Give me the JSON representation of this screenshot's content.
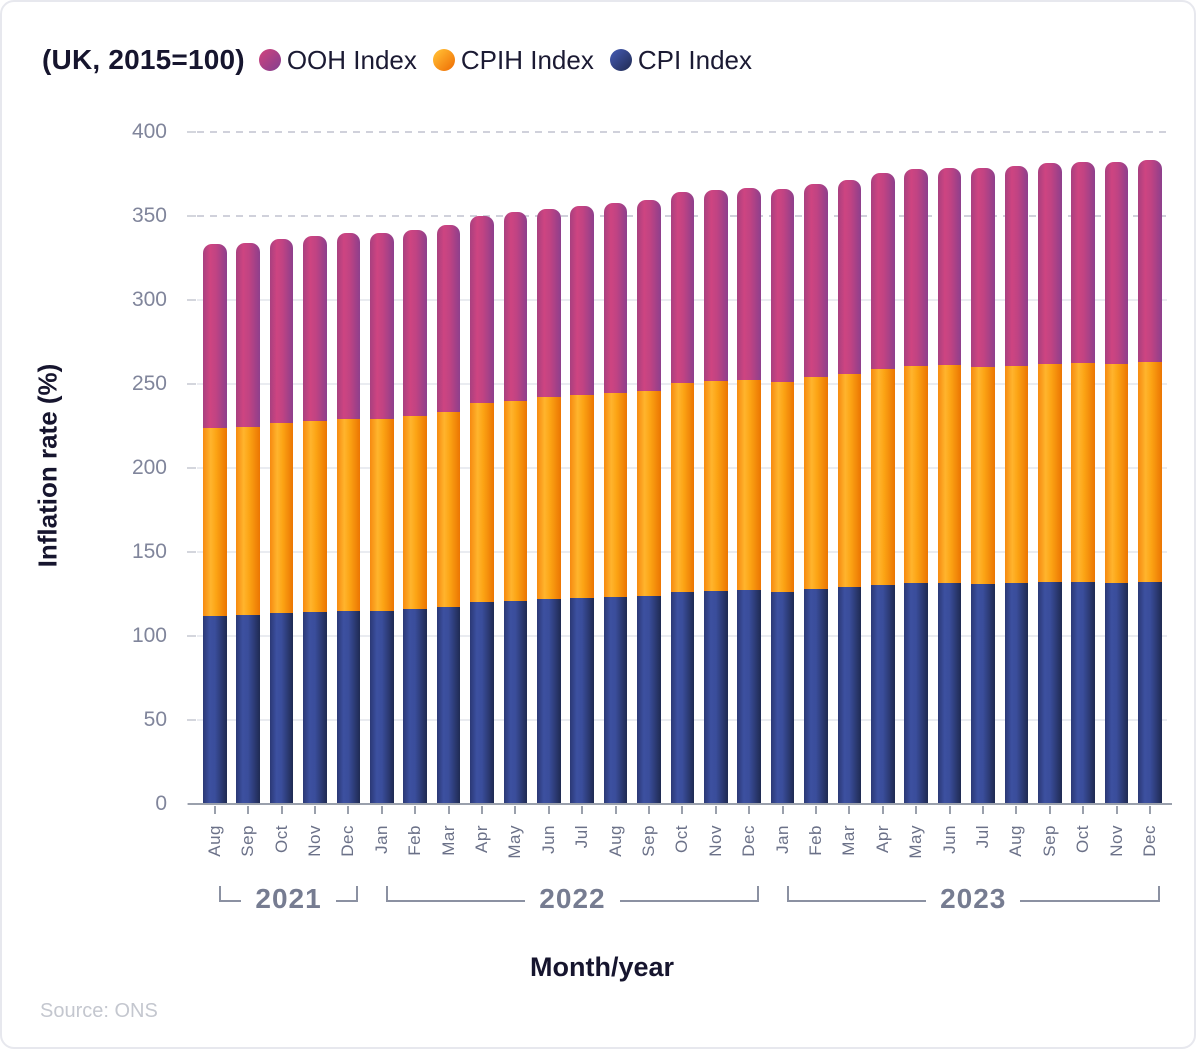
{
  "header": {
    "title": "(UK, 2015=100)",
    "legend": [
      {
        "id": "ooh",
        "label": "OOH Index",
        "color": "#b8417f"
      },
      {
        "id": "cpih",
        "label": "CPIH Index",
        "color": "#f99311"
      },
      {
        "id": "cpi",
        "label": "CPI Index",
        "color": "#2e3d80"
      }
    ]
  },
  "axes": {
    "y_title": "Inflation rate (%)",
    "x_title": "Month/year",
    "y_tick_labels": [
      "0",
      "50",
      "100",
      "150",
      "200",
      "250",
      "300",
      "350",
      "400"
    ]
  },
  "footer": {
    "source": "Source: ONS"
  },
  "chart_data": {
    "type": "bar",
    "stacked": true,
    "title": "(UK, 2015=100)",
    "xlabel": "Month/year",
    "ylabel": "Inflation rate (%)",
    "ylim": [
      0,
      400
    ],
    "y_ticks": [
      0,
      50,
      100,
      150,
      200,
      250,
      300,
      350,
      400
    ],
    "grid": "horizontal, dashed above 300, solid below",
    "legend_position": "top",
    "categories": [
      "Aug",
      "Sep",
      "Oct",
      "Nov",
      "Dec",
      "Jan",
      "Feb",
      "Mar",
      "Apr",
      "May",
      "Jun",
      "Jul",
      "Aug",
      "Sep",
      "Oct",
      "Nov",
      "Dec",
      "Jan",
      "Feb",
      "Mar",
      "Apr",
      "May",
      "Jun",
      "Jul",
      "Aug",
      "Sep",
      "Oct",
      "Nov",
      "Dec"
    ],
    "year_groups": [
      {
        "label": "2021",
        "start": 0,
        "end": 4
      },
      {
        "label": "2022",
        "start": 5,
        "end": 16
      },
      {
        "label": "2023",
        "start": 17,
        "end": 28
      }
    ],
    "series": [
      {
        "name": "CPI Index",
        "stack_order": "bottom",
        "color": "#2e3d80",
        "values": [
          112.1,
          112.4,
          113.6,
          114.5,
          115.1,
          114.9,
          115.8,
          117.1,
          120.0,
          120.8,
          121.8,
          122.5,
          123.1,
          123.8,
          126.2,
          126.7,
          127.2,
          126.4,
          127.9,
          128.9,
          130.4,
          131.3,
          131.5,
          130.9,
          131.3,
          131.9,
          132.0,
          131.7,
          132.2
        ]
      },
      {
        "name": "CPIH Index",
        "stack_order": "middle",
        "color": "#f99311",
        "values": [
          111.6,
          111.9,
          112.9,
          113.7,
          114.2,
          114.1,
          114.9,
          116.1,
          118.5,
          119.3,
          120.2,
          120.9,
          121.5,
          122.2,
          124.3,
          124.8,
          125.3,
          124.8,
          126.1,
          127.0,
          128.6,
          129.5,
          129.7,
          129.3,
          129.7,
          130.3,
          130.5,
          130.2,
          130.7
        ]
      },
      {
        "name": "OOH Index",
        "stack_order": "top",
        "color": "#b8417f",
        "values": [
          109.5,
          109.7,
          110.0,
          110.2,
          110.4,
          110.6,
          110.9,
          111.2,
          111.6,
          112.0,
          112.4,
          112.8,
          113.2,
          113.5,
          113.8,
          114.1,
          114.4,
          114.8,
          115.3,
          115.8,
          116.4,
          117.0,
          117.6,
          118.2,
          118.8,
          119.4,
          119.9,
          120.2,
          120.5
        ]
      }
    ]
  }
}
